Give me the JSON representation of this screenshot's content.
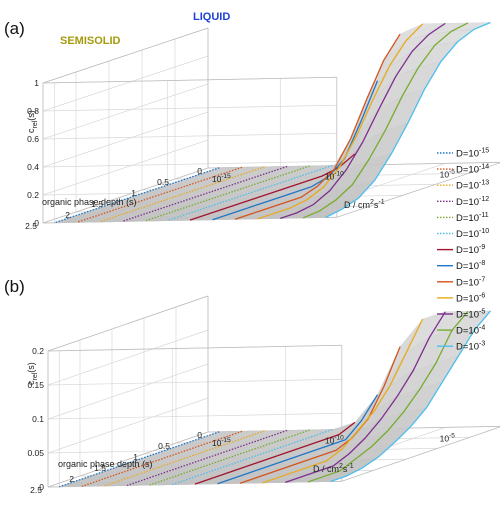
{
  "chart_data": [
    {
      "panel": "(a)",
      "type": "line",
      "xlabel": "organic phase depth (s)",
      "ylabel": "c_rel(s)",
      "ylabel_main": "c",
      "ylabel_sub": "rel",
      "ylabel_tail": "(s)",
      "zlabel": "D / cm²s⁻¹",
      "zlabel_main": "D / cm",
      "zlabel_sup1": "2",
      "zlabel_mid": "s",
      "zlabel_sup2": "-1",
      "ylim": [
        0,
        1
      ],
      "yticks": [
        "0",
        "0.2",
        "0.4",
        "0.6",
        "0.8",
        "1"
      ],
      "depth_ticks": [
        "2.5",
        "2",
        "1.5",
        "1",
        "0.5",
        "0"
      ],
      "dticks": [
        "10",
        "10",
        "10"
      ],
      "dtick_exps": [
        "-15",
        "-10",
        "-5"
      ],
      "annotations": [
        "SEMISOLID",
        "LIQUID"
      ],
      "annotation_colors": [
        "#a59a0e",
        "#1f40d8"
      ],
      "depth": [
        0,
        0.25,
        0.5,
        0.75,
        1.0,
        1.25,
        1.5,
        1.75,
        2.0,
        2.25,
        2.5
      ],
      "series_log10D": [
        -15,
        -14,
        -13,
        -12,
        -11,
        -10,
        -9,
        -8,
        -7,
        -6,
        -5,
        -4,
        -3
      ],
      "series": [
        {
          "log10D": -15,
          "values": [
            0.0,
            0.0,
            0.0,
            0.0,
            0.0,
            0.0,
            0.0,
            0.0,
            0.0,
            0.0,
            0.0
          ]
        },
        {
          "log10D": -14,
          "values": [
            0.0,
            0.0,
            0.0,
            0.0,
            0.0,
            0.0,
            0.0,
            0.0,
            0.0,
            0.0,
            0.0
          ]
        },
        {
          "log10D": -13,
          "values": [
            0.0,
            0.0,
            0.0,
            0.0,
            0.0,
            0.0,
            0.0,
            0.0,
            0.0,
            0.0,
            0.0
          ]
        },
        {
          "log10D": -12,
          "values": [
            0.0,
            0.0,
            0.0,
            0.0,
            0.0,
            0.0,
            0.0,
            0.0,
            0.0,
            0.0,
            0.0
          ]
        },
        {
          "log10D": -11,
          "values": [
            0.0,
            0.0,
            0.0,
            0.0,
            0.0,
            0.0,
            0.0,
            0.0,
            0.0,
            0.0,
            0.0
          ]
        },
        {
          "log10D": -10,
          "values": [
            0.0,
            0.0,
            0.0,
            0.0,
            0.0,
            0.0,
            0.0,
            0.0,
            0.0,
            0.0,
            0.0
          ]
        },
        {
          "log10D": -9,
          "values": [
            0.08,
            0.02,
            0.0,
            0.0,
            0.0,
            0.0,
            0.0,
            0.0,
            0.0,
            0.0,
            0.0
          ]
        },
        {
          "log10D": -8,
          "values": [
            0.6,
            0.35,
            0.12,
            0.03,
            0.0,
            0.0,
            0.0,
            0.0,
            0.0,
            0.0,
            0.0
          ]
        },
        {
          "log10D": -7,
          "values": [
            0.93,
            0.78,
            0.55,
            0.3,
            0.12,
            0.04,
            0.0,
            0.0,
            0.0,
            0.0,
            0.0
          ]
        },
        {
          "log10D": -6,
          "values": [
            1.0,
            0.92,
            0.78,
            0.58,
            0.36,
            0.18,
            0.07,
            0.02,
            0.0,
            0.0,
            0.0
          ]
        },
        {
          "log10D": -5,
          "values": [
            1.0,
            0.96,
            0.88,
            0.74,
            0.55,
            0.35,
            0.19,
            0.08,
            0.02,
            0.0,
            0.0
          ]
        },
        {
          "log10D": -4,
          "values": [
            1.0,
            0.98,
            0.92,
            0.8,
            0.63,
            0.43,
            0.26,
            0.12,
            0.05,
            0.01,
            0.0
          ]
        },
        {
          "log10D": -3,
          "values": [
            1.0,
            0.99,
            0.94,
            0.84,
            0.68,
            0.48,
            0.3,
            0.15,
            0.06,
            0.02,
            0.0
          ]
        }
      ]
    },
    {
      "panel": "(b)",
      "type": "line",
      "xlabel": "organic phase depth (s)",
      "ylabel": "c_rel(s)",
      "ylabel_main": "c",
      "ylabel_sub": "rel",
      "ylabel_tail": "(s)",
      "zlabel": "D / cm²s⁻¹",
      "zlabel_main": "D / cm",
      "zlabel_sup1": "2",
      "zlabel_mid": "s",
      "zlabel_sup2": "-1",
      "ylim": [
        0,
        0.2
      ],
      "yticks": [
        "0",
        "0.05",
        "0.1",
        "0.15",
        "0.2"
      ],
      "depth_ticks": [
        "2.5",
        "2",
        "1.5",
        "1",
        "0.5",
        "0"
      ],
      "dticks": [
        "10",
        "10",
        "10"
      ],
      "dtick_exps": [
        "-15",
        "-10",
        "-5"
      ],
      "depth": [
        0,
        0.25,
        0.5,
        0.75,
        1.0,
        1.25,
        1.5,
        1.75,
        2.0,
        2.25,
        2.5
      ],
      "series_log10D": [
        -15,
        -14,
        -13,
        -12,
        -11,
        -10,
        -9,
        -8,
        -7,
        -6,
        -5,
        -4,
        -3
      ],
      "series": [
        {
          "log10D": -15,
          "values": [
            0.0,
            0.0,
            0.0,
            0.0,
            0.0,
            0.0,
            0.0,
            0.0,
            0.0,
            0.0,
            0.0
          ]
        },
        {
          "log10D": -14,
          "values": [
            0.0,
            0.0,
            0.0,
            0.0,
            0.0,
            0.0,
            0.0,
            0.0,
            0.0,
            0.0,
            0.0
          ]
        },
        {
          "log10D": -13,
          "values": [
            0.0,
            0.0,
            0.0,
            0.0,
            0.0,
            0.0,
            0.0,
            0.0,
            0.0,
            0.0,
            0.0
          ]
        },
        {
          "log10D": -12,
          "values": [
            0.0,
            0.0,
            0.0,
            0.0,
            0.0,
            0.0,
            0.0,
            0.0,
            0.0,
            0.0,
            0.0
          ]
        },
        {
          "log10D": -11,
          "values": [
            0.0,
            0.0,
            0.0,
            0.0,
            0.0,
            0.0,
            0.0,
            0.0,
            0.0,
            0.0,
            0.0
          ]
        },
        {
          "log10D": -10,
          "values": [
            0.0,
            0.0,
            0.0,
            0.0,
            0.0,
            0.0,
            0.0,
            0.0,
            0.0,
            0.0,
            0.0
          ]
        },
        {
          "log10D": -9,
          "values": [
            0.01,
            0.0,
            0.0,
            0.0,
            0.0,
            0.0,
            0.0,
            0.0,
            0.0,
            0.0,
            0.0
          ]
        },
        {
          "log10D": -8,
          "values": [
            0.05,
            0.02,
            0.0,
            0.0,
            0.0,
            0.0,
            0.0,
            0.0,
            0.0,
            0.0,
            0.0
          ]
        },
        {
          "log10D": -7,
          "values": [
            0.12,
            0.07,
            0.03,
            0.01,
            0.0,
            0.0,
            0.0,
            0.0,
            0.0,
            0.0,
            0.0
          ]
        },
        {
          "log10D": -6,
          "values": [
            0.16,
            0.12,
            0.08,
            0.05,
            0.03,
            0.01,
            0.0,
            0.0,
            0.0,
            0.0,
            0.0
          ]
        },
        {
          "log10D": -5,
          "values": [
            0.17,
            0.14,
            0.1,
            0.07,
            0.045,
            0.025,
            0.01,
            0.0,
            0.0,
            0.0,
            0.0
          ]
        },
        {
          "log10D": -4,
          "values": [
            0.17,
            0.15,
            0.11,
            0.08,
            0.055,
            0.035,
            0.02,
            0.01,
            0.0,
            0.0,
            0.0
          ]
        },
        {
          "log10D": -3,
          "values": [
            0.17,
            0.15,
            0.12,
            0.09,
            0.06,
            0.04,
            0.025,
            0.012,
            0.004,
            0.0,
            0.0
          ]
        }
      ]
    }
  ],
  "legend": {
    "entries": [
      {
        "base": "D=10",
        "exp": "-15",
        "color": "#1f77c8",
        "style": "dotted"
      },
      {
        "base": "D=10",
        "exp": "-14",
        "color": "#d4541e",
        "style": "dotted"
      },
      {
        "base": "D=10",
        "exp": "-13",
        "color": "#e8a91c",
        "style": "dotted"
      },
      {
        "base": "D=10",
        "exp": "-12",
        "color": "#7e2f8e",
        "style": "dotted"
      },
      {
        "base": "D=10",
        "exp": "-11",
        "color": "#77ac30",
        "style": "dotted"
      },
      {
        "base": "D=10",
        "exp": "-10",
        "color": "#4dbeee",
        "style": "dotted"
      },
      {
        "base": "D=10",
        "exp": "-9",
        "color": "#a2142f",
        "style": "solid"
      },
      {
        "base": "D=10",
        "exp": "-8",
        "color": "#1f77c8",
        "style": "solid"
      },
      {
        "base": "D=10",
        "exp": "-7",
        "color": "#d4541e",
        "style": "solid"
      },
      {
        "base": "D=10",
        "exp": "-6",
        "color": "#e8a91c",
        "style": "solid"
      },
      {
        "base": "D=10",
        "exp": "-5",
        "color": "#7e2f8e",
        "style": "solid"
      },
      {
        "base": "D=10",
        "exp": "-4",
        "color": "#77ac30",
        "style": "solid"
      },
      {
        "base": "D=10",
        "exp": "-3",
        "color": "#4dbeee",
        "style": "solid"
      }
    ]
  }
}
